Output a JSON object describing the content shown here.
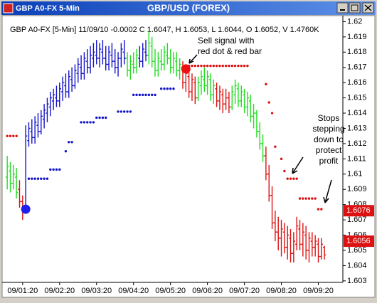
{
  "window": {
    "title_left": "GBP A0-FX 5-Min",
    "title_center": "GBP/USD (FOREX)"
  },
  "chart_data": {
    "type": "ohlc",
    "info": "GBP A0-FX [5-Min] 11/09/10 -0.0002 C 1.6047, H 1.6053, L 1.6044, O 1.6052, V 1.4760K",
    "categories": [
      null,
      null,
      null,
      null,
      null,
      "09/01:20",
      null,
      null,
      null,
      null,
      null,
      null,
      null,
      null,
      null,
      null,
      null,
      "09/02:20",
      null,
      null,
      null,
      null,
      null,
      null,
      null,
      null,
      null,
      null,
      null,
      "09/03:20",
      null,
      null,
      null,
      null,
      null,
      null,
      null,
      null,
      null,
      null,
      null,
      "09/04:20",
      null,
      null,
      null,
      null,
      null,
      null,
      null,
      null,
      null,
      null,
      null,
      "09/05:20",
      null,
      null,
      null,
      null,
      null,
      null,
      null,
      null,
      null,
      null,
      null,
      "09/06:20",
      null,
      null,
      null,
      null,
      null,
      null,
      null,
      null,
      null,
      null,
      null,
      "09/07:20",
      null,
      null,
      null,
      null,
      null,
      null,
      null,
      null,
      null,
      null,
      null,
      "09/08:20",
      null,
      null,
      null,
      null,
      null,
      null,
      null,
      null,
      null,
      null,
      null,
      "09/09:20",
      null,
      null
    ],
    "open": [
      1.6098,
      1.6102,
      1.6094,
      1.6098,
      1.609,
      1.6082,
      1.6078,
      1.6122,
      1.6128,
      1.6124,
      1.6132,
      1.6128,
      1.6136,
      1.614,
      1.6144,
      1.6148,
      1.615,
      1.6148,
      1.6154,
      1.6158,
      1.6154,
      1.6162,
      1.6158,
      1.6166,
      1.617,
      1.6166,
      1.6174,
      1.617,
      1.6176,
      1.6178,
      1.6176,
      1.618,
      1.6176,
      1.6172,
      1.6178,
      1.6174,
      1.617,
      1.6176,
      1.618,
      1.6176,
      1.6168,
      1.6172,
      1.617,
      1.6176,
      1.6174,
      1.618,
      1.6178,
      1.6184,
      1.6174,
      1.6168,
      1.6174,
      1.6172,
      1.6178,
      1.6176,
      1.617,
      1.6174,
      1.6168,
      1.617,
      1.616,
      1.6164,
      1.6154,
      1.616,
      1.615,
      1.6158,
      1.6162,
      1.6158,
      1.6162,
      1.6152,
      1.6156,
      1.6148,
      1.6152,
      1.6146,
      1.615,
      1.6144,
      1.6152,
      1.6156,
      1.6148,
      1.6152,
      1.6144,
      1.6148,
      1.6138,
      1.614,
      1.6128,
      1.612,
      1.6112,
      1.61,
      1.6086,
      1.6068,
      1.6062,
      1.6058,
      1.6062,
      1.6052,
      1.6058,
      1.6048,
      1.6054,
      1.6064,
      1.6054,
      1.606,
      1.605,
      1.6056,
      1.6052,
      1.6054,
      1.6046,
      1.6052
    ],
    "high": [
      1.6112,
      1.6108,
      1.6106,
      1.6104,
      1.6096,
      1.6086,
      1.6132,
      1.6134,
      1.6136,
      1.6138,
      1.614,
      1.6142,
      1.6146,
      1.615,
      1.6154,
      1.6156,
      1.6158,
      1.616,
      1.6164,
      1.6166,
      1.6168,
      1.617,
      1.6172,
      1.6176,
      1.6178,
      1.618,
      1.6182,
      1.6184,
      1.6186,
      1.6188,
      1.6186,
      1.6188,
      1.6184,
      1.6184,
      1.6186,
      1.6182,
      1.618,
      1.6186,
      1.6188,
      1.618,
      1.6178,
      1.618,
      1.6182,
      1.6184,
      1.6186,
      1.6188,
      1.6194,
      1.619,
      1.6182,
      1.618,
      1.6182,
      1.6184,
      1.6186,
      1.6182,
      1.618,
      1.618,
      1.6176,
      1.6174,
      1.617,
      1.6168,
      1.6166,
      1.6164,
      1.6164,
      1.6168,
      1.617,
      1.6168,
      1.6166,
      1.6162,
      1.616,
      1.6158,
      1.6156,
      1.6156,
      1.6154,
      1.6158,
      1.6162,
      1.616,
      1.6158,
      1.6156,
      1.6154,
      1.6152,
      1.6146,
      1.6142,
      1.6134,
      1.6126,
      1.6118,
      1.6106,
      1.6092,
      1.6076,
      1.6072,
      1.607,
      1.6068,
      1.6066,
      1.6064,
      1.6062,
      1.6072,
      1.607,
      1.6068,
      1.6066,
      1.6062,
      1.6062,
      1.606,
      1.6058,
      1.6058,
      1.6053
    ],
    "low": [
      1.609,
      1.6088,
      1.609,
      1.6084,
      1.6078,
      1.607,
      1.6075,
      1.6118,
      1.612,
      1.612,
      1.6124,
      1.6126,
      1.613,
      1.6134,
      1.6138,
      1.6142,
      1.6144,
      1.6144,
      1.6148,
      1.615,
      1.615,
      1.6154,
      1.6156,
      1.616,
      1.6162,
      1.6162,
      1.6166,
      1.6166,
      1.617,
      1.6172,
      1.617,
      1.6172,
      1.6168,
      1.6168,
      1.617,
      1.6166,
      1.6164,
      1.617,
      1.6172,
      1.6164,
      1.6162,
      1.6166,
      1.6166,
      1.617,
      1.617,
      1.6174,
      1.6172,
      1.617,
      1.6164,
      1.6164,
      1.6168,
      1.6168,
      1.6172,
      1.6166,
      1.6166,
      1.6164,
      1.6162,
      1.6156,
      1.6154,
      1.615,
      1.6148,
      1.6146,
      1.6148,
      1.6152,
      1.6154,
      1.6152,
      1.6148,
      1.6146,
      1.6144,
      1.6142,
      1.614,
      1.6142,
      1.614,
      1.6142,
      1.6146,
      1.6144,
      1.6144,
      1.614,
      1.6138,
      1.6134,
      1.613,
      1.6124,
      1.6116,
      1.6108,
      1.6096,
      1.6082,
      1.6064,
      1.6056,
      1.605,
      1.6046,
      1.6048,
      1.6044,
      1.6042,
      1.6042,
      1.605,
      1.605,
      1.6046,
      1.6044,
      1.6042,
      1.6046,
      1.6046,
      1.6042,
      1.6044,
      1.6044
    ],
    "close": [
      1.6105,
      1.6094,
      1.61,
      1.6088,
      1.6082,
      1.6076,
      1.6125,
      1.613,
      1.6124,
      1.6134,
      1.6128,
      1.6138,
      1.6142,
      1.6146,
      1.615,
      1.6152,
      1.6148,
      1.6156,
      1.616,
      1.6154,
      1.6164,
      1.6158,
      1.6168,
      1.6172,
      1.6166,
      1.6176,
      1.617,
      1.6178,
      1.618,
      1.6176,
      1.6182,
      1.6176,
      1.6172,
      1.618,
      1.6174,
      1.617,
      1.6176,
      1.6182,
      1.6176,
      1.6168,
      1.6174,
      1.617,
      1.6178,
      1.6174,
      1.6182,
      1.6178,
      1.6186,
      1.6174,
      1.6168,
      1.6176,
      1.6172,
      1.618,
      1.6176,
      1.617,
      1.6176,
      1.6168,
      1.6172,
      1.616,
      1.6166,
      1.6154,
      1.6162,
      1.615,
      1.616,
      1.6164,
      1.6158,
      1.6164,
      1.6152,
      1.6158,
      1.6148,
      1.6154,
      1.6146,
      1.615,
      1.6144,
      1.6154,
      1.6158,
      1.6148,
      1.6154,
      1.6144,
      1.615,
      1.6138,
      1.614,
      1.6128,
      1.612,
      1.6112,
      1.61,
      1.6086,
      1.6068,
      1.6062,
      1.6058,
      1.6064,
      1.6052,
      1.606,
      1.6048,
      1.6056,
      1.6066,
      1.6054,
      1.6062,
      1.605,
      1.6058,
      1.6052,
      1.6056,
      1.6046,
      1.6054,
      1.6047
    ],
    "bar_colors": [
      "#22dd22",
      "#22dd22",
      "#22dd22",
      "#22dd22",
      "#dd1111",
      "#dd1111",
      "#1414c8",
      "#1414c8",
      "#1414c8",
      "#1414c8",
      "#1414c8",
      "#1414c8",
      "#1414c8",
      "#1414c8",
      "#1414c8",
      "#1414c8",
      "#1414c8",
      "#1414c8",
      "#1414c8",
      "#1414c8",
      "#1414c8",
      "#1414c8",
      "#1414c8",
      "#1414c8",
      "#1414c8",
      "#1414c8",
      "#1414c8",
      "#1414c8",
      "#1414c8",
      "#1414c8",
      "#1414c8",
      "#1414c8",
      "#1414c8",
      "#1414c8",
      "#1414c8",
      "#1414c8",
      "#1414c8",
      "#1414c8",
      "#1414c8",
      "#22dd22",
      "#22dd22",
      "#22dd22",
      "#22dd22",
      "#1414c8",
      "#1414c8",
      "#1414c8",
      "#22dd22",
      "#22dd22",
      "#22dd22",
      "#22dd22",
      "#22dd22",
      "#22dd22",
      "#22dd22",
      "#22dd22",
      "#22dd22",
      "#22dd22",
      "#22dd22",
      "#dd1111",
      "#dd1111",
      "#dd1111",
      "#dd1111",
      "#dd1111",
      "#22dd22",
      "#22dd22",
      "#22dd22",
      "#22dd22",
      "#22dd22",
      "#22dd22",
      "#dd1111",
      "#dd1111",
      "#dd1111",
      "#dd1111",
      "#dd1111",
      "#22dd22",
      "#22dd22",
      "#22dd22",
      "#22dd22",
      "#22dd22",
      "#22dd22",
      "#22dd22",
      "#22dd22",
      "#22dd22",
      "#22dd22",
      "#22dd22",
      "#dd1111",
      "#dd1111",
      "#dd1111",
      "#dd1111",
      "#dd1111",
      "#dd1111",
      "#dd1111",
      "#dd1111",
      "#dd1111",
      "#dd1111",
      "#dd1111",
      "#dd1111",
      "#dd1111",
      "#dd1111",
      "#dd1111",
      "#dd1111",
      "#dd1111",
      "#dd1111",
      "#dd1111",
      "#dd1111"
    ],
    "stops": [
      {
        "color": "#1414c8",
        "values": [
          null,
          null,
          null,
          null,
          null,
          null,
          null,
          1.6097,
          1.6097,
          1.6097,
          1.6097,
          1.6097,
          1.6097,
          1.6097,
          1.6103,
          1.6103,
          1.6103,
          1.6103,
          null,
          1.6115,
          1.6121,
          1.6121,
          null,
          null,
          1.6134,
          1.6134,
          1.6134,
          1.6134,
          1.6134,
          1.6137,
          1.6137,
          1.6137,
          1.6137,
          null,
          null,
          null,
          1.6141,
          1.6141,
          1.6141,
          1.6141,
          1.6141,
          1.6152,
          1.6152,
          1.6152,
          1.6152,
          1.6152,
          1.6152,
          1.6152,
          1.6152,
          null,
          1.6156,
          1.6156,
          1.6156,
          1.6156,
          1.6156,
          null,
          null,
          null,
          null,
          null,
          null,
          null,
          null,
          null,
          null,
          null,
          null,
          null,
          null,
          null,
          null,
          null,
          null,
          null,
          null,
          null,
          null,
          null,
          null,
          null,
          null,
          null,
          null,
          null,
          null,
          null,
          null,
          null,
          null,
          null,
          null,
          null,
          null,
          null,
          null,
          null,
          null,
          null,
          null,
          null,
          null,
          null,
          null,
          null
        ]
      },
      {
        "color": "#dd1111",
        "values": [
          1.6125,
          1.6125,
          1.6125,
          1.6125,
          null,
          null,
          null,
          null,
          null,
          null,
          null,
          null,
          null,
          null,
          null,
          null,
          null,
          null,
          null,
          null,
          null,
          null,
          null,
          null,
          null,
          null,
          null,
          null,
          null,
          null,
          null,
          null,
          null,
          null,
          null,
          null,
          null,
          null,
          null,
          null,
          null,
          null,
          null,
          null,
          null,
          null,
          null,
          null,
          null,
          null,
          null,
          null,
          null,
          null,
          null,
          null,
          null,
          null,
          null,
          1.6171,
          1.6171,
          1.6171,
          1.6171,
          1.6171,
          1.6171,
          1.6171,
          1.6171,
          1.6171,
          1.6171,
          1.6171,
          1.6171,
          1.6171,
          1.6171,
          1.6171,
          1.6171,
          1.6171,
          1.6171,
          1.6171,
          1.6171,
          null,
          null,
          null,
          null,
          null,
          1.6159,
          1.6147,
          1.614,
          1.6118,
          null,
          1.611,
          1.6102,
          1.6097,
          1.6097,
          1.6097,
          1.6097,
          1.6084,
          1.6084,
          1.6084,
          1.6084,
          1.6084,
          1.6084,
          1.6077,
          1.6077,
          null
        ]
      }
    ],
    "signals": [
      {
        "color": "#2020ee",
        "values": [
          null,
          null,
          null,
          null,
          null,
          null,
          1.6077,
          null,
          null,
          null,
          null,
          null,
          null,
          null,
          null,
          null,
          null,
          null,
          null,
          null,
          null,
          null,
          null,
          null,
          null,
          null,
          null,
          null,
          null,
          null,
          null,
          null,
          null,
          null,
          null,
          null,
          null,
          null,
          null,
          null,
          null,
          null,
          null,
          null,
          null,
          null,
          null,
          null,
          null,
          null,
          null,
          null,
          null,
          null,
          null,
          null,
          null,
          null,
          null,
          null,
          null,
          null,
          null,
          null,
          null,
          null,
          null,
          null,
          null,
          null,
          null,
          null,
          null,
          null,
          null,
          null,
          null,
          null,
          null,
          null,
          null,
          null,
          null,
          null,
          null,
          null,
          null,
          null,
          null,
          null,
          null,
          null,
          null,
          null,
          null,
          null,
          null,
          null,
          null,
          null,
          null,
          null,
          null,
          null
        ]
      },
      {
        "color": "#ee1111",
        "values": [
          null,
          null,
          null,
          null,
          null,
          null,
          null,
          null,
          null,
          null,
          null,
          null,
          null,
          null,
          null,
          null,
          null,
          null,
          null,
          null,
          null,
          null,
          null,
          null,
          null,
          null,
          null,
          null,
          null,
          null,
          null,
          null,
          null,
          null,
          null,
          null,
          null,
          null,
          null,
          null,
          null,
          null,
          null,
          null,
          null,
          null,
          null,
          null,
          null,
          null,
          null,
          null,
          null,
          null,
          null,
          null,
          null,
          null,
          1.6169,
          null,
          null,
          null,
          null,
          null,
          null,
          null,
          null,
          null,
          null,
          null,
          null,
          null,
          null,
          null,
          null,
          null,
          null,
          null,
          null,
          null,
          null,
          null,
          null,
          null,
          null,
          null,
          null,
          null,
          null,
          null,
          null,
          null,
          null,
          null,
          null,
          null,
          null,
          null,
          null,
          null,
          null,
          null,
          null,
          null
        ]
      }
    ],
    "price_tags": [
      {
        "value": 1.6076,
        "color": "#dd1111"
      },
      {
        "value": 1.6056,
        "color": "#dd1111"
      }
    ],
    "ylim": [
      1.6029,
      1.6203
    ],
    "yticks": [
      1.62,
      1.619,
      1.618,
      1.617,
      1.616,
      1.615,
      1.614,
      1.613,
      1.612,
      1.611,
      1.61,
      1.609,
      1.608,
      1.607,
      1.606,
      1.605,
      1.604,
      1.603
    ],
    "annotations": [
      {
        "lines": [
          "Sell signal with",
          "red dot & red bar"
        ]
      },
      {
        "lines": [
          "Stops",
          "stepping",
          "down to",
          "protect",
          "profit"
        ]
      }
    ]
  }
}
